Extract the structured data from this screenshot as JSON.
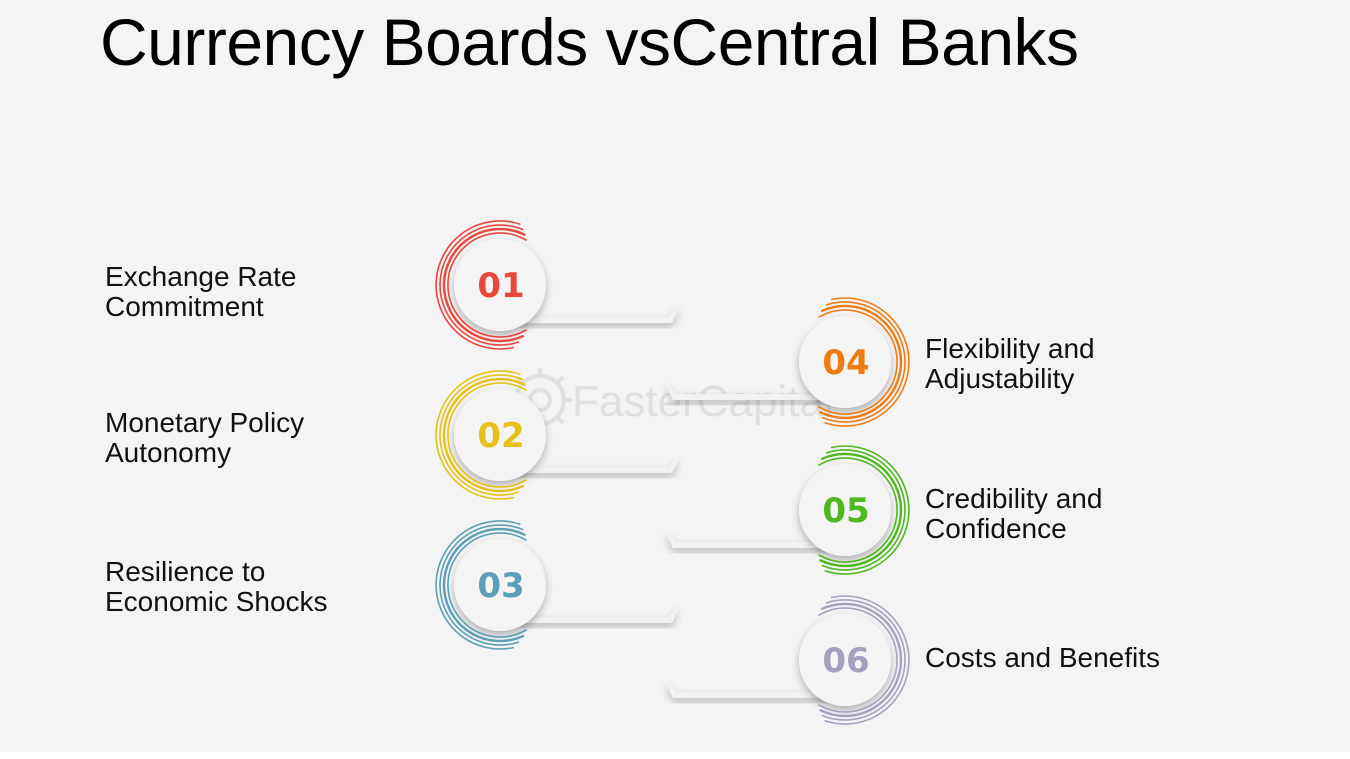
{
  "title": "Currency Boards vsCentral Banks",
  "watermark": "FasterCapital",
  "items": [
    {
      "number": "01",
      "color": "#e8473c",
      "lines": [
        "Exchange Rate",
        "Commitment"
      ]
    },
    {
      "number": "02",
      "color": "#e6c219",
      "lines": [
        "Monetary Policy",
        "Autonomy"
      ]
    },
    {
      "number": "03",
      "color": "#5a9fb5",
      "lines": [
        "Resilience to",
        "Economic Shocks"
      ]
    },
    {
      "number": "04",
      "color": "#f07b12",
      "lines": [
        "Flexibility and",
        "Adjustability"
      ]
    },
    {
      "number": "05",
      "color": "#4fb81f",
      "lines": [
        "Credibility and",
        "Confidence"
      ]
    },
    {
      "number": "06",
      "color": "#a79fbe",
      "lines": [
        "Costs and Benefits"
      ]
    }
  ]
}
